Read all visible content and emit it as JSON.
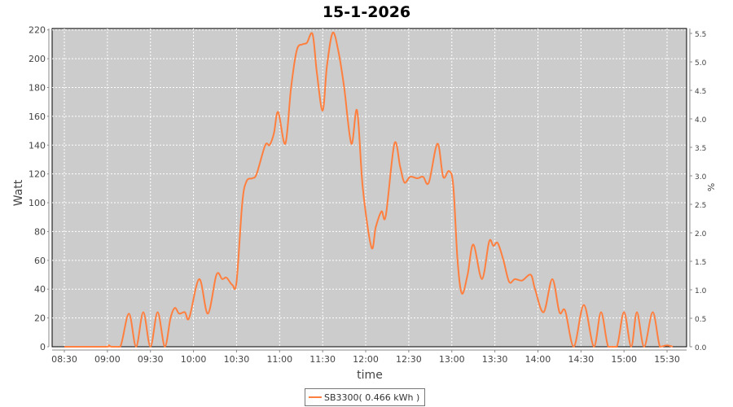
{
  "chart_data": {
    "type": "line",
    "title": "15-1-2026",
    "xlabel": "time",
    "ylabel": "Watt",
    "y2label": "%",
    "xlim": [
      "08:24",
      "15:38"
    ],
    "ylim": [
      0,
      222
    ],
    "y2lim": [
      0,
      5.55
    ],
    "xticks": [
      "08:30",
      "09:00",
      "09:30",
      "10:00",
      "10:30",
      "11:00",
      "11:30",
      "12:00",
      "12:30",
      "13:00",
      "13:30",
      "14:00",
      "14:30",
      "15:00",
      "15:30"
    ],
    "yticks": [
      0,
      20,
      40,
      60,
      80,
      100,
      120,
      140,
      160,
      180,
      200,
      220
    ],
    "y2ticks": [
      "0.0",
      "0.5",
      "1.0",
      "1.5",
      "2.0",
      "2.5",
      "3.0",
      "3.5",
      "4.0",
      "4.5",
      "5.0",
      "5.5"
    ],
    "grid": true,
    "legend_position": "bottom",
    "colors": {
      "series": "#ff7f3f",
      "plot_background": "#cccccc",
      "grid": "#ffffff"
    },
    "series": [
      {
        "name": "SB3300( 0.466 kWh )",
        "points": [
          [
            "08:30",
            0
          ],
          [
            "08:59",
            0
          ],
          [
            "09:01",
            1
          ],
          [
            "09:03",
            0
          ],
          [
            "09:09",
            0
          ],
          [
            "09:15",
            23
          ],
          [
            "09:20",
            0
          ],
          [
            "09:25",
            24
          ],
          [
            "09:30",
            0
          ],
          [
            "09:35",
            24
          ],
          [
            "09:40",
            0
          ],
          [
            "09:44",
            20
          ],
          [
            "09:47",
            27
          ],
          [
            "09:50",
            23
          ],
          [
            "09:54",
            24
          ],
          [
            "09:57",
            20
          ],
          [
            "10:04",
            47
          ],
          [
            "10:10",
            23
          ],
          [
            "10:16",
            50
          ],
          [
            "10:20",
            47
          ],
          [
            "10:23",
            48
          ],
          [
            "10:27",
            43
          ],
          [
            "10:30",
            45
          ],
          [
            "10:34",
            100
          ],
          [
            "10:37",
            115
          ],
          [
            "10:41",
            117
          ],
          [
            "10:44",
            120
          ],
          [
            "10:50",
            140
          ],
          [
            "10:53",
            140
          ],
          [
            "10:56",
            148
          ],
          [
            "10:59",
            163
          ],
          [
            "11:04",
            141
          ],
          [
            "11:08",
            180
          ],
          [
            "11:12",
            206
          ],
          [
            "11:16",
            210
          ],
          [
            "11:19",
            211
          ],
          [
            "11:23",
            217
          ],
          [
            "11:26",
            190
          ],
          [
            "11:30",
            164
          ],
          [
            "11:33",
            195
          ],
          [
            "11:37",
            218
          ],
          [
            "11:41",
            205
          ],
          [
            "11:45",
            180
          ],
          [
            "11:50",
            141
          ],
          [
            "11:54",
            164
          ],
          [
            "11:58",
            110
          ],
          [
            "12:04",
            69
          ],
          [
            "12:07",
            83
          ],
          [
            "12:11",
            94
          ],
          [
            "12:14",
            91
          ],
          [
            "12:20",
            141
          ],
          [
            "12:24",
            125
          ],
          [
            "12:27",
            114
          ],
          [
            "12:31",
            118
          ],
          [
            "12:36",
            117
          ],
          [
            "12:40",
            118
          ],
          [
            "12:44",
            114
          ],
          [
            "12:50",
            141
          ],
          [
            "12:54",
            118
          ],
          [
            "12:58",
            122
          ],
          [
            "13:01",
            112
          ],
          [
            "13:04",
            60
          ],
          [
            "13:07",
            37
          ],
          [
            "13:11",
            50
          ],
          [
            "13:15",
            71
          ],
          [
            "13:21",
            47
          ],
          [
            "13:26",
            73
          ],
          [
            "13:29",
            70
          ],
          [
            "13:32",
            72
          ],
          [
            "13:36",
            60
          ],
          [
            "13:40",
            45
          ],
          [
            "13:44",
            47
          ],
          [
            "13:49",
            46
          ],
          [
            "13:55",
            50
          ],
          [
            "13:58",
            40
          ],
          [
            "14:04",
            24
          ],
          [
            "14:10",
            47
          ],
          [
            "14:15",
            24
          ],
          [
            "14:19",
            25
          ],
          [
            "14:25",
            0
          ],
          [
            "14:32",
            29
          ],
          [
            "14:39",
            0
          ],
          [
            "14:44",
            24
          ],
          [
            "14:49",
            0
          ],
          [
            "14:55",
            0
          ],
          [
            "15:00",
            24
          ],
          [
            "15:05",
            0
          ],
          [
            "15:09",
            24
          ],
          [
            "15:14",
            0
          ],
          [
            "15:20",
            24
          ],
          [
            "15:25",
            0
          ],
          [
            "15:30",
            1
          ],
          [
            "15:34",
            0
          ]
        ]
      }
    ]
  }
}
